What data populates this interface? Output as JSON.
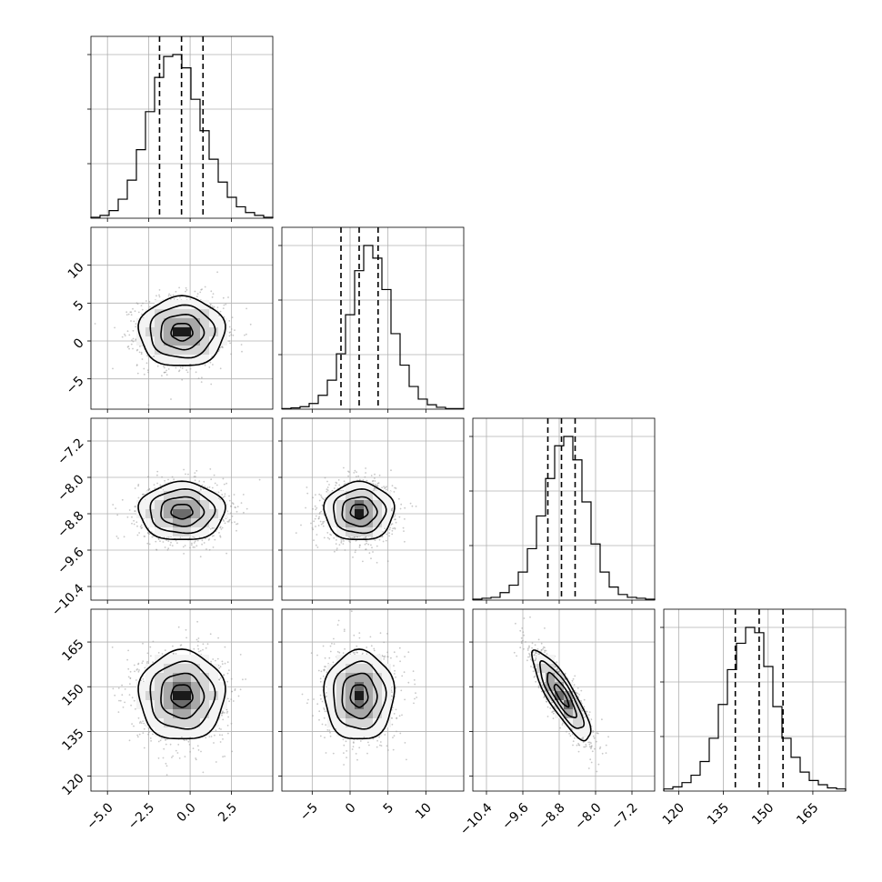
{
  "chart_data": {
    "type": "corner",
    "grid": true,
    "quantile_lines": "dashed",
    "params": [
      {
        "mean": -0.5,
        "sd": 1.3,
        "range": [
          -6.0,
          5.0
        ],
        "ticks": [
          -5.0,
          -2.5,
          0.0,
          2.5
        ],
        "tick_labels": [
          "−5.0",
          "−2.5",
          "0.0",
          "2.5"
        ],
        "quantiles": [
          -1.85,
          -0.52,
          0.78
        ]
      },
      {
        "mean": 1.2,
        "sd": 2.3,
        "range": [
          -9.0,
          15.0
        ],
        "ticks": [
          -5,
          0,
          5,
          10
        ],
        "tick_labels": [
          "−5",
          "0",
          "5",
          "10"
        ],
        "quantiles": [
          -1.2,
          1.2,
          3.7
        ]
      },
      {
        "mean": -8.75,
        "sd": 0.32,
        "range": [
          -10.7,
          -6.7
        ],
        "ticks": [
          -10.4,
          -9.6,
          -8.8,
          -8.0,
          -7.2
        ],
        "tick_labels": [
          "−10.4",
          "−9.6",
          "−8.8",
          "−8.0",
          "−7.2"
        ],
        "quantiles": [
          -9.05,
          -8.75,
          -8.45
        ]
      },
      {
        "mean": 147,
        "sd": 7.5,
        "range": [
          115,
          176
        ],
        "ticks": [
          120,
          135,
          150,
          165
        ],
        "tick_labels": [
          "120",
          "135",
          "150",
          "165"
        ],
        "quantiles": [
          139,
          147,
          155
        ]
      }
    ],
    "correlations": {
      "p2-p3": -0.85
    },
    "histograms": [
      {
        "param": 0,
        "bins": 20,
        "counts": [
          1,
          3,
          8,
          20,
          40,
          72,
          112,
          148,
          170,
          172,
          158,
          125,
          92,
          62,
          38,
          22,
          12,
          6,
          3,
          1
        ]
      },
      {
        "param": 1,
        "bins": 20,
        "counts": [
          1,
          2,
          4,
          9,
          22,
          46,
          88,
          150,
          220,
          260,
          240,
          190,
          120,
          70,
          36,
          16,
          7,
          3,
          1,
          1
        ]
      },
      {
        "param": 2,
        "bins": 20,
        "counts": [
          1,
          2,
          3,
          8,
          16,
          30,
          55,
          90,
          130,
          165,
          175,
          150,
          105,
          60,
          30,
          14,
          6,
          3,
          2,
          1
        ]
      },
      {
        "param": 3,
        "bins": 20,
        "counts": [
          2,
          4,
          8,
          15,
          28,
          50,
          82,
          115,
          140,
          155,
          150,
          118,
          80,
          50,
          32,
          18,
          10,
          6,
          3,
          2
        ]
      }
    ]
  }
}
